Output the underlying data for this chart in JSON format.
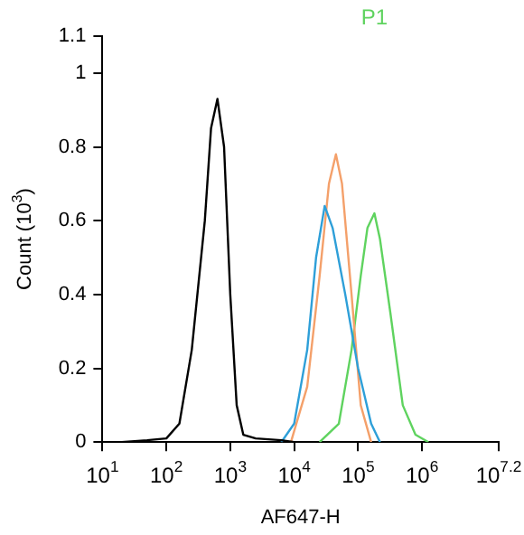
{
  "chart_data": {
    "type": "line",
    "xlabel": "AF647-H",
    "ylabel": "Count (10$^{3}$)",
    "log": "x",
    "grid": false,
    "legend": false,
    "marker": "none",
    "line_style": "solid",
    "xlim": [
      10,
      15848932
    ],
    "xticks": [
      {
        "value": 10,
        "label": "10$^{1}$"
      },
      {
        "value": 100,
        "label": "10$^{2}$"
      },
      {
        "value": 1000,
        "label": "10$^{3}$"
      },
      {
        "value": 10000,
        "label": "10$^{4}$"
      },
      {
        "value": 100000,
        "label": "10$^{5}$"
      },
      {
        "value": 1000000,
        "label": "10$^{6}$"
      },
      {
        "value": 15848932,
        "label": "10$^{7.2}$"
      }
    ],
    "ylim": [
      0,
      1.1
    ],
    "yticks": [
      0,
      0.2,
      0.4,
      0.6,
      0.8,
      1,
      1.1
    ],
    "series": [
      {
        "color": "#000000",
        "x": [
          20,
          50,
          100,
          160,
          250,
          400,
          500,
          630,
          800,
          1000,
          1260,
          1600,
          2500,
          6300,
          10000
        ],
        "values": [
          0,
          0.005,
          0.01,
          0.05,
          0.25,
          0.6,
          0.85,
          0.93,
          0.8,
          0.4,
          0.1,
          0.02,
          0.01,
          0.005,
          0
        ]
      },
      {
        "color": "#2e9fd8",
        "x": [
          6300,
          10000,
          16000,
          22000,
          30000,
          40000,
          63000,
          100000,
          160000,
          220000
        ],
        "values": [
          0,
          0.05,
          0.25,
          0.5,
          0.64,
          0.58,
          0.4,
          0.2,
          0.05,
          0
        ]
      },
      {
        "color": "#f4a06a",
        "x": [
          8900,
          16000,
          25000,
          35000,
          45000,
          56000,
          79000,
          110000,
          160000
        ],
        "values": [
          0,
          0.15,
          0.45,
          0.7,
          0.78,
          0.7,
          0.4,
          0.1,
          0
        ]
      },
      {
        "name": "P1",
        "color": "#5fd35f",
        "x": [
          25000,
          50000,
          79000,
          110000,
          140000,
          180000,
          220000,
          320000,
          500000,
          790000,
          1260000
        ],
        "values": [
          0,
          0.05,
          0.25,
          0.45,
          0.58,
          0.62,
          0.55,
          0.35,
          0.1,
          0.02,
          0
        ]
      }
    ]
  }
}
